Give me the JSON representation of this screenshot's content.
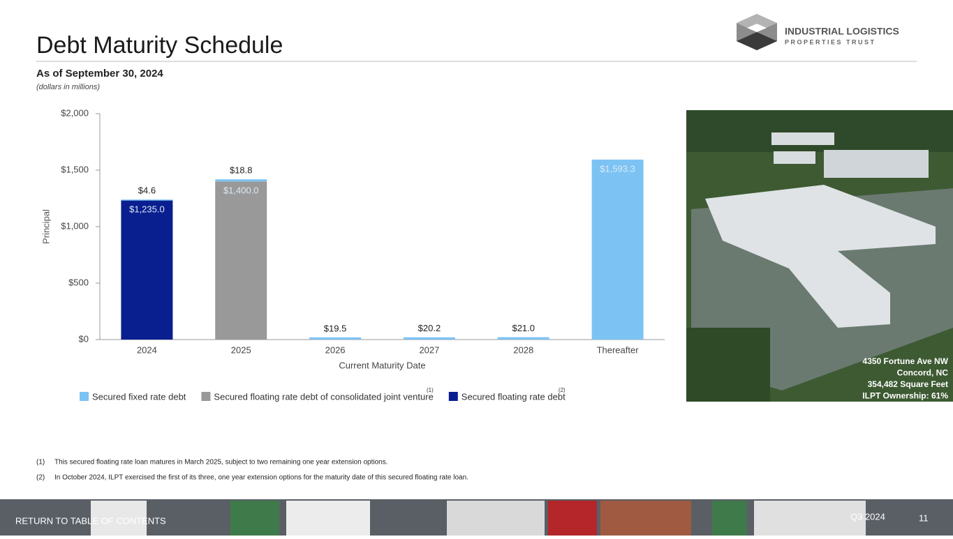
{
  "header": {
    "title": "Debt Maturity Schedule",
    "subtitle": "As of September 30, 2024",
    "units_note": "(dollars in millions)",
    "logo_line1": "INDUSTRIAL LOGISTICS",
    "logo_line2": "PROPERTIES TRUST"
  },
  "chart_data": {
    "type": "stacked_bar",
    "categories": [
      "2024",
      "2025",
      "2026",
      "2027",
      "2028",
      "Thereafter"
    ],
    "x_label": "Current Maturity Date",
    "y_label": "Principal",
    "ylim": [
      0,
      2000
    ],
    "yticks": [
      {
        "value": 0,
        "label": "$0"
      },
      {
        "value": 500,
        "label": "$500"
      },
      {
        "value": 1000,
        "label": "$1,000"
      },
      {
        "value": 1500,
        "label": "$1,500"
      },
      {
        "value": 2000,
        "label": "$2,000"
      }
    ],
    "series": [
      {
        "name": "Secured fixed rate debt",
        "color": "#7cc3f4",
        "values": [
          4.6,
          18.8,
          19.5,
          20.2,
          21.0,
          1593.3
        ],
        "value_labels": [
          "$4.6",
          "$18.8",
          "$19.5",
          "$20.2",
          "$21.0",
          "$1,593.3"
        ]
      },
      {
        "name": "Secured floating rate debt of consolidated joint venture",
        "superscript": "(1)",
        "color": "#999999",
        "values": [
          null,
          1400.0,
          null,
          null,
          null,
          null
        ],
        "value_labels": [
          null,
          "$1,400.0",
          null,
          null,
          null,
          null
        ]
      },
      {
        "name": "Secured floating rate debt",
        "superscript": "(2)",
        "color": "#0a1f8f",
        "values": [
          1235.0,
          null,
          null,
          null,
          null,
          null
        ],
        "value_labels": [
          "$1,235.0",
          null,
          null,
          null,
          null,
          null
        ]
      }
    ],
    "legend": "bottom"
  },
  "photo_caption": [
    "4350 Fortune Ave NW",
    "Concord, NC",
    "354,482 Square Feet",
    "ILPT Ownership: 61%"
  ],
  "footnotes": [
    {
      "marker": "(1)",
      "text": "This secured floating rate loan matures in March 2025, subject to two remaining one year extension options."
    },
    {
      "marker": "(2)",
      "text": "In October 2024, ILPT exercised the first of its three, one year extension options for the maturity date of this secured floating rate loan."
    }
  ],
  "footer": {
    "link": "RETURN TO TABLE OF CONTENTS",
    "period": "Q3 2024",
    "page": "11"
  }
}
